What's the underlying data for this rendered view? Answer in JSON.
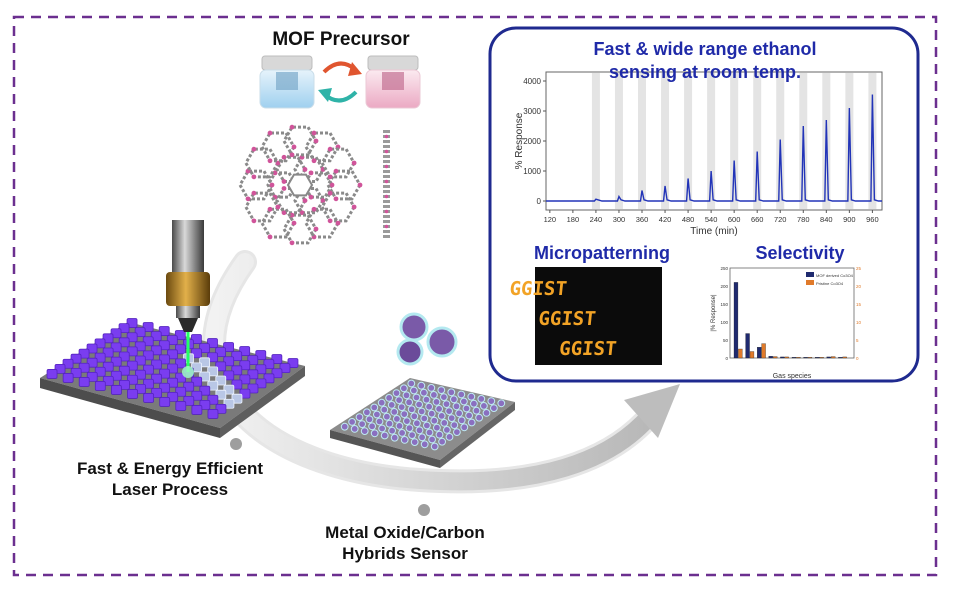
{
  "colors": {
    "frame_dash": "#6b2f8f",
    "panel_border": "#1f2a8f",
    "title_blue": "#1f2aa8",
    "laser_green": "#22ff66",
    "cube_purple": "#7a3df0",
    "bar_navy": "#1f2a6f",
    "bar_orange": "#e07a2a"
  },
  "labels": {
    "mof_precursor": "MOF Precursor",
    "laser_process_line1": "Fast & Energy Efficient",
    "laser_process_line2": "Laser Process",
    "hybrid_sensor_line1": "Metal Oxide/Carbon",
    "hybrid_sensor_line2": "Hybrids Sensor",
    "panel_title_line1": "Fast & wide range ethanol",
    "panel_title_line2": "sensing at room temp.",
    "micropatterning": "Micropatterning",
    "selectivity": "Selectivity",
    "pattern_text": "GGIST"
  },
  "chart_data": [
    {
      "type": "line",
      "xlabel": "Time (min)",
      "ylabel": "% Response",
      "xlim": [
        110,
        985
      ],
      "ylim": [
        -300,
        4300
      ],
      "xticks": [
        120,
        180,
        240,
        300,
        360,
        420,
        480,
        540,
        600,
        660,
        720,
        780,
        840,
        900,
        960
      ],
      "yticks": [
        0,
        1000,
        2000,
        3000,
        4000
      ],
      "pulse_times": [
        240,
        300,
        360,
        420,
        480,
        540,
        600,
        660,
        720,
        780,
        840,
        900,
        960
      ],
      "pulse_peaks": [
        60,
        150,
        350,
        500,
        750,
        1000,
        1350,
        1650,
        2050,
        2500,
        2700,
        3100,
        3550
      ],
      "baseline": 0
    },
    {
      "type": "bar",
      "xlabel": "Gas species",
      "ylabel": "|% Response|",
      "ylim": [
        0,
        250
      ],
      "yticks": [
        0,
        50,
        100,
        150,
        200,
        250
      ],
      "y2ticks": [
        0,
        5,
        10,
        15,
        20,
        25
      ],
      "series": [
        {
          "name": "MOF derived Co3O4",
          "values": [
            210,
            68,
            30,
            5,
            3,
            2,
            2,
            2,
            3,
            2
          ]
        },
        {
          "name": "Pristine Co3O4",
          "values": [
            25,
            18,
            40,
            4,
            3,
            2,
            2,
            2,
            4,
            3
          ]
        }
      ]
    }
  ]
}
